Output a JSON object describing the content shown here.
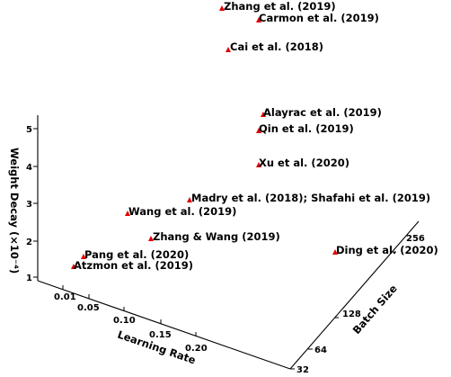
{
  "chart_data": {
    "type": "scatter",
    "projection": "3d",
    "marker_color": "#e00000",
    "axes": {
      "x": {
        "label": "Learning Rate",
        "ticks": [
          "0.01",
          "0.05",
          "0.10",
          "0.15",
          "0.20"
        ]
      },
      "y": {
        "label": "Batch Size",
        "ticks": [
          "32",
          "64",
          "128",
          "256"
        ]
      },
      "z": {
        "label": "Weight Decay (×10⁻⁴)",
        "ticks": [
          "1",
          "2",
          "3",
          "4",
          "5"
        ]
      }
    },
    "points": [
      {
        "label": "Zhang et al. (2019)"
      },
      {
        "label": "Carmon et al. (2019)"
      },
      {
        "label": "Cai et al. (2018)"
      },
      {
        "label": "Alayrac et al. (2019)"
      },
      {
        "label": "Qin et al. (2019)"
      },
      {
        "label": "Xu et al. (2020)"
      },
      {
        "label": "Madry et al. (2018); Shafahi et al. (2019)"
      },
      {
        "label": "Wang et al. (2019)"
      },
      {
        "label": "Zhang & Wang (2019)"
      },
      {
        "label": "Ding et al. (2020)"
      },
      {
        "label": "Pang et al. (2020)"
      },
      {
        "label": "Atzmon et al. (2019)"
      }
    ]
  }
}
